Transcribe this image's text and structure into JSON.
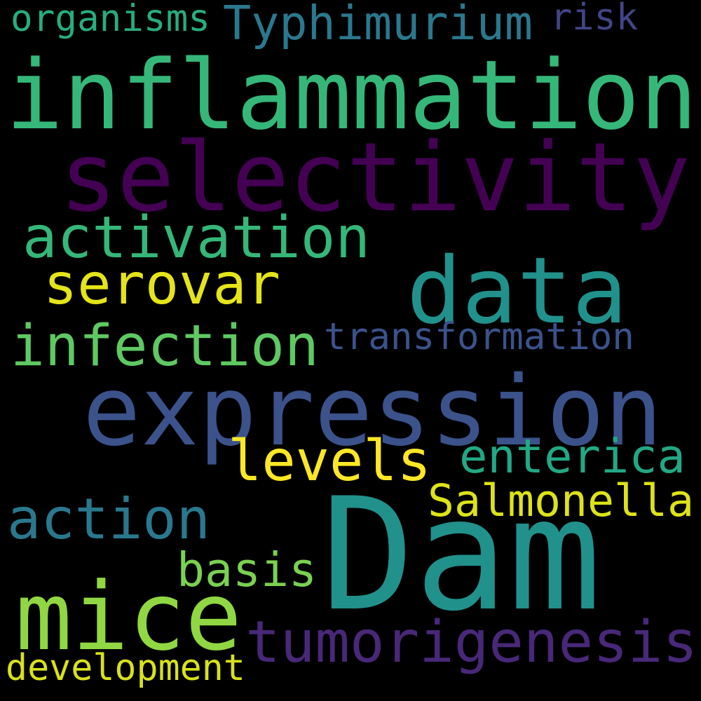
{
  "background": "#000000",
  "words": [
    {
      "text": "Dam",
      "color": "#21918c"
    },
    {
      "text": "inflammation",
      "color": "#35b779"
    },
    {
      "text": "selectivity",
      "color": "#440154"
    },
    {
      "text": "expression",
      "color": "#3b528b"
    },
    {
      "text": "data",
      "color": "#21918c"
    },
    {
      "text": "mice",
      "color": "#90d743"
    },
    {
      "text": "tumorigenesis",
      "color": "#482878"
    },
    {
      "text": "activation",
      "color": "#35b779"
    },
    {
      "text": "infection",
      "color": "#5ec962"
    },
    {
      "text": "serovar",
      "color": "#e5e419"
    },
    {
      "text": "levels",
      "color": "#fde725"
    },
    {
      "text": "action",
      "color": "#2a788e"
    },
    {
      "text": "Salmonella",
      "color": "#dde318"
    },
    {
      "text": "enterica",
      "color": "#22a884"
    },
    {
      "text": "Typhimurium",
      "color": "#2a788e"
    },
    {
      "text": "transformation",
      "color": "#3b528b"
    },
    {
      "text": "basis",
      "color": "#7ad151"
    },
    {
      "text": "development",
      "color": "#d8e219"
    },
    {
      "text": "organisms",
      "color": "#27ad81"
    },
    {
      "text": "risk",
      "color": "#414487"
    }
  ]
}
